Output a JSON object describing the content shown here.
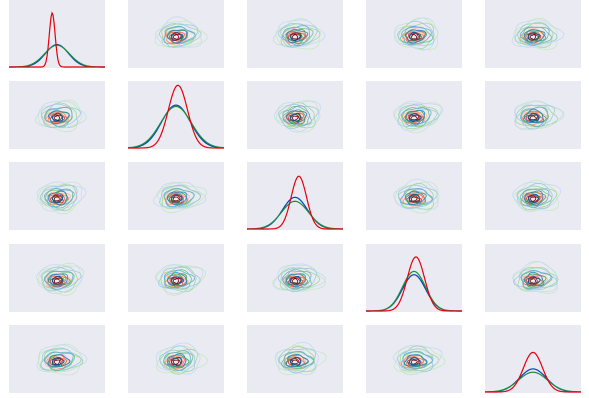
{
  "chart_data": {
    "type": "pairgrid",
    "grid_size": 5,
    "diagonal_type": "kde",
    "off_diagonal_type": "kde-contour",
    "ticks_shown": false,
    "background": "#eaeaf2",
    "series": [
      {
        "color": "#e8000b",
        "colormap": "Reds",
        "centers": [
          0.45,
          0.52,
          0.54,
          0.52,
          0.5
        ],
        "spreads": [
          0.03,
          0.1,
          0.08,
          0.09,
          0.1
        ],
        "peaks": [
          0.82,
          0.95,
          0.8,
          0.82,
          0.6
        ]
      },
      {
        "color": "#0a3fb8",
        "colormap": "Blues",
        "centers": [
          0.5,
          0.5,
          0.5,
          0.5,
          0.5
        ],
        "spreads": [
          0.12,
          0.15,
          0.13,
          0.12,
          0.14
        ],
        "peaks": [
          0.34,
          0.65,
          0.48,
          0.55,
          0.35
        ]
      },
      {
        "color": "#1a8f3e",
        "colormap": "Greens",
        "centers": [
          0.5,
          0.5,
          0.5,
          0.5,
          0.5
        ],
        "spreads": [
          0.13,
          0.16,
          0.14,
          0.12,
          0.15
        ],
        "peaks": [
          0.33,
          0.63,
          0.42,
          0.6,
          0.3
        ]
      }
    ]
  }
}
